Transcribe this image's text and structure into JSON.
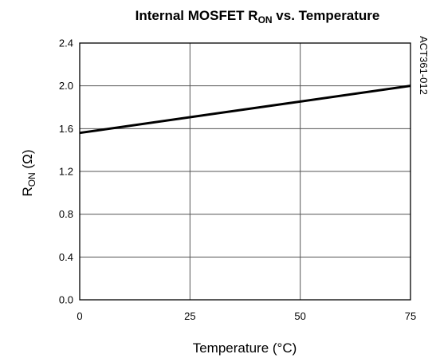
{
  "chart_data": {
    "type": "line",
    "title": {
      "main": "Internal MOSFET R",
      "sub": "ON",
      "rest": " vs. Temperature"
    },
    "xlabel": "Temperature (°C)",
    "ylabel": {
      "main": "R",
      "sub": "ON",
      "rest": " (Ω)"
    },
    "side_label": "ACT361-012",
    "xlim": [
      0,
      75
    ],
    "ylim": [
      0,
      2.4
    ],
    "x_ticks": [
      "0",
      "25",
      "50",
      "75"
    ],
    "y_ticks": [
      "0.0",
      "0.4",
      "0.8",
      "1.2",
      "1.6",
      "2.0",
      "2.4"
    ],
    "grid": true,
    "legend": "none",
    "series": [
      {
        "x": [
          0,
          75
        ],
        "y": [
          1.56,
          2.0
        ]
      }
    ]
  }
}
